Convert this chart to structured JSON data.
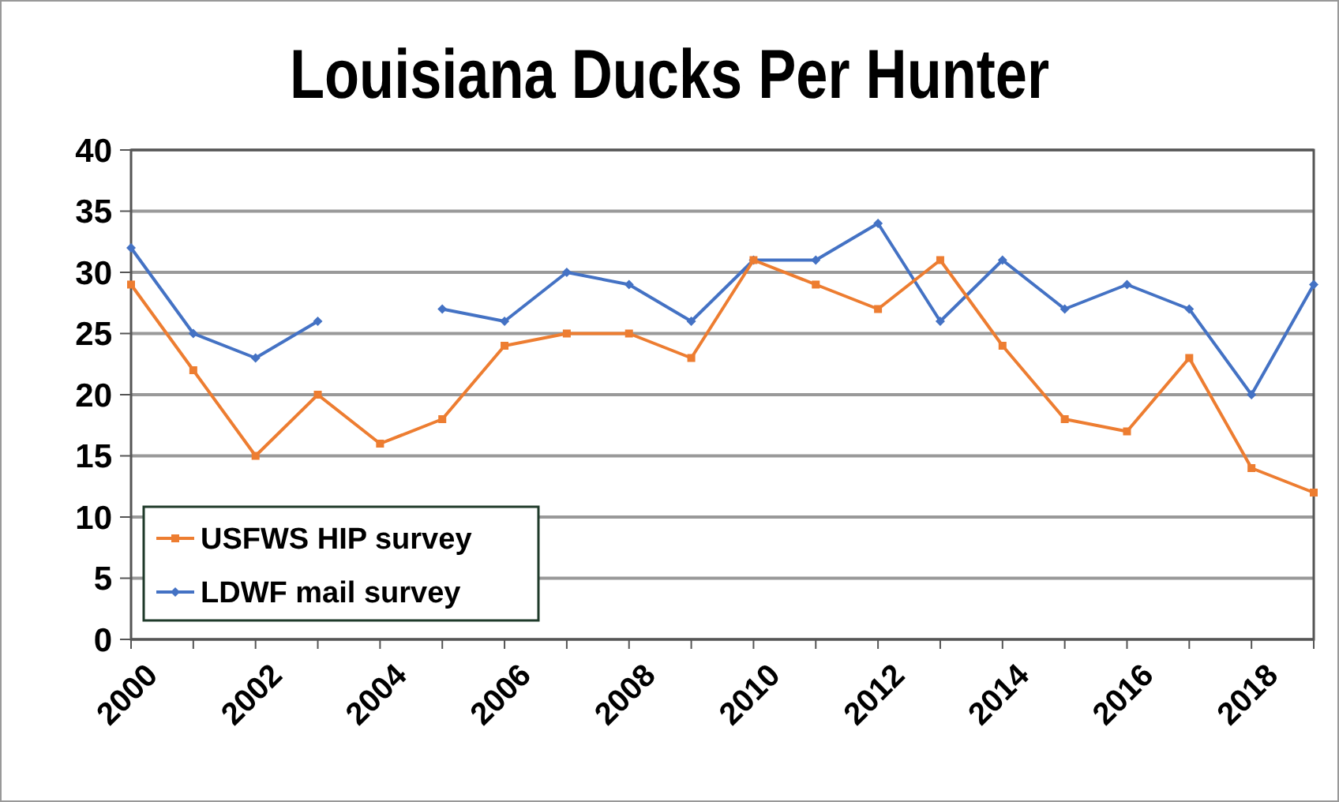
{
  "chart_data": {
    "type": "line",
    "title": "Louisiana Ducks Per Hunter",
    "x": [
      2000,
      2001,
      2002,
      2003,
      2004,
      2005,
      2006,
      2007,
      2008,
      2009,
      2010,
      2011,
      2012,
      2013,
      2014,
      2015,
      2016,
      2017,
      2018,
      2019
    ],
    "series": [
      {
        "name": "USFWS HIP survey",
        "color": "#ed7d31",
        "marker": "square",
        "values": [
          29,
          22,
          15,
          20,
          16,
          18,
          24,
          25,
          25,
          23,
          31,
          29,
          27,
          31,
          24,
          18,
          17,
          23,
          14,
          12
        ]
      },
      {
        "name": "LDWF mail survey",
        "color": "#4472c4",
        "marker": "diamond",
        "values": [
          32,
          25,
          23,
          26,
          null,
          27,
          26,
          30,
          29,
          26,
          31,
          31,
          34,
          26,
          31,
          27,
          29,
          27,
          20,
          29
        ]
      }
    ],
    "xlim": [
      2000,
      2019
    ],
    "xticks": [
      2000,
      {
        "value": 2001,
        "label": null
      },
      2002,
      {
        "value": 2003,
        "label": null
      },
      2004,
      {
        "value": 2005,
        "label": null
      },
      2006,
      {
        "value": 2007,
        "label": null
      },
      2008,
      {
        "value": 2009,
        "label": null
      },
      2010,
      {
        "value": 2011,
        "label": null
      },
      2012,
      {
        "value": 2013,
        "label": null
      },
      2014,
      {
        "value": 2015,
        "label": null
      },
      2016,
      {
        "value": 2017,
        "label": null
      },
      2018,
      {
        "value": 2019,
        "label": null
      }
    ],
    "ylim": [
      0,
      40
    ],
    "yticks": [
      0,
      5,
      10,
      15,
      20,
      25,
      30,
      35,
      40
    ],
    "grid": "y",
    "legend": "bottom left",
    "line_style": "solid"
  }
}
